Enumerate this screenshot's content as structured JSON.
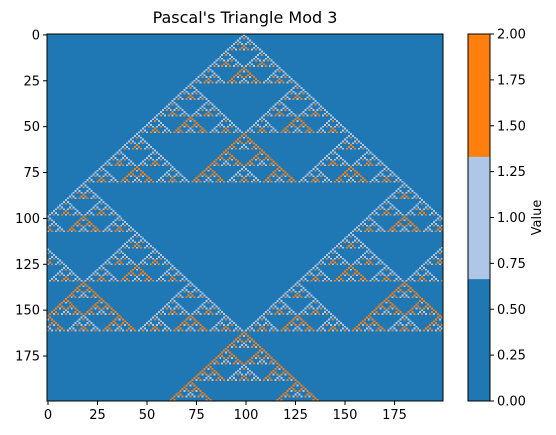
{
  "chart_data": {
    "type": "heatmap",
    "title": "Pascal's Triangle Mod 3",
    "rows": 200,
    "cols": 200,
    "rule": "cell(n, k) = C(n, k) mod 3, placed centered with column = 99 - n + 2k; empty cells = 0",
    "x_ticks": [
      "0",
      "25",
      "50",
      "75",
      "100",
      "125",
      "150",
      "175"
    ],
    "y_ticks": [
      "0",
      "25",
      "50",
      "75",
      "100",
      "125",
      "150",
      "175"
    ],
    "x_tick_values": [
      0,
      25,
      50,
      75,
      100,
      125,
      150,
      175
    ],
    "y_tick_values": [
      0,
      25,
      50,
      75,
      100,
      125,
      150,
      175
    ],
    "colormap": [
      "#1f77b4",
      "#aec7e8",
      "#ff7f0e"
    ],
    "colorbar": {
      "label": "Value",
      "range": [
        0,
        2
      ],
      "ticks": [
        "0.00",
        "0.25",
        "0.50",
        "0.75",
        "1.00",
        "1.25",
        "1.50",
        "1.75",
        "2.00"
      ],
      "tick_values": [
        0,
        0.25,
        0.5,
        0.75,
        1.0,
        1.25,
        1.5,
        1.75,
        2.0
      ]
    }
  }
}
